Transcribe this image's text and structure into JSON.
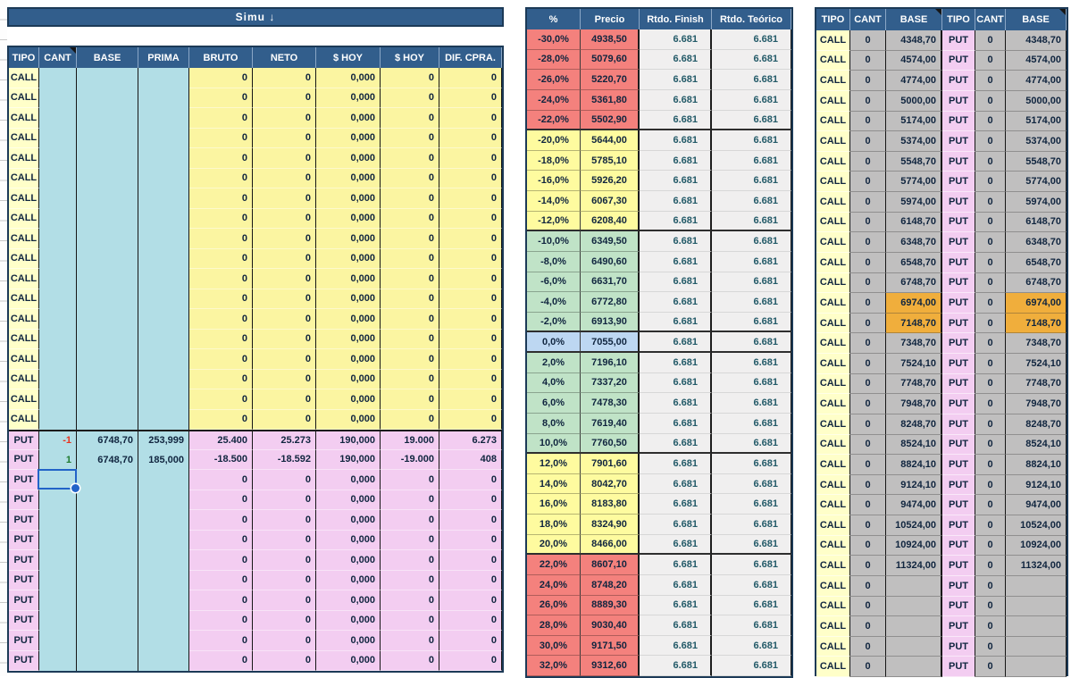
{
  "left_table": {
    "banner_label": "Simu ↓",
    "headers": [
      "TIPO",
      "CANT",
      "BASE",
      "PRIMA",
      "BRUTO",
      "NETO",
      "$ HOY",
      "$ HOY",
      "DIF. CPRA."
    ],
    "comment_marker_header_index": 1,
    "call_row_count": 18,
    "call_row_default": {
      "tipo": "CALL",
      "cant": "",
      "base": "",
      "prima": "",
      "bruto": "0",
      "neto": "0",
      "hoy1": "0,000",
      "hoy2": "0",
      "dif": "0"
    },
    "put_rows": [
      {
        "tipo": "PUT",
        "cant": "-1",
        "cant_class": "neg",
        "base": "6748,70",
        "prima": "253,999",
        "bruto": "25.400",
        "neto": "25.273",
        "hoy1": "190,000",
        "hoy2": "19.000",
        "dif": "6.273"
      },
      {
        "tipo": "PUT",
        "cant": "1",
        "cant_class": "pos",
        "base": "6748,70",
        "prima": "185,000",
        "bruto": "-18.500",
        "neto": "-18.592",
        "hoy1": "190,000",
        "hoy2": "-19.000",
        "dif": "408"
      },
      {
        "tipo": "PUT",
        "cant": "",
        "cant_class": "",
        "base": "",
        "prima": "",
        "bruto": "0",
        "neto": "0",
        "hoy1": "0,000",
        "hoy2": "0",
        "dif": "0",
        "selected": true
      },
      {
        "tipo": "PUT",
        "cant": "",
        "cant_class": "",
        "base": "",
        "prima": "",
        "bruto": "0",
        "neto": "0",
        "hoy1": "0,000",
        "hoy2": "0",
        "dif": "0"
      },
      {
        "tipo": "PUT",
        "cant": "",
        "cant_class": "",
        "base": "",
        "prima": "",
        "bruto": "0",
        "neto": "0",
        "hoy1": "0,000",
        "hoy2": "0",
        "dif": "0"
      },
      {
        "tipo": "PUT",
        "cant": "",
        "cant_class": "",
        "base": "",
        "prima": "",
        "bruto": "0",
        "neto": "0",
        "hoy1": "0,000",
        "hoy2": "0",
        "dif": "0"
      },
      {
        "tipo": "PUT",
        "cant": "",
        "cant_class": "",
        "base": "",
        "prima": "",
        "bruto": "0",
        "neto": "0",
        "hoy1": "0,000",
        "hoy2": "0",
        "dif": "0"
      },
      {
        "tipo": "PUT",
        "cant": "",
        "cant_class": "",
        "base": "",
        "prima": "",
        "bruto": "0",
        "neto": "0",
        "hoy1": "0,000",
        "hoy2": "0",
        "dif": "0"
      },
      {
        "tipo": "PUT",
        "cant": "",
        "cant_class": "",
        "base": "",
        "prima": "",
        "bruto": "0",
        "neto": "0",
        "hoy1": "0,000",
        "hoy2": "0",
        "dif": "0"
      },
      {
        "tipo": "PUT",
        "cant": "",
        "cant_class": "",
        "base": "",
        "prima": "",
        "bruto": "0",
        "neto": "0",
        "hoy1": "0,000",
        "hoy2": "0",
        "dif": "0"
      },
      {
        "tipo": "PUT",
        "cant": "",
        "cant_class": "",
        "base": "",
        "prima": "",
        "bruto": "0",
        "neto": "0",
        "hoy1": "0,000",
        "hoy2": "0",
        "dif": "0"
      },
      {
        "tipo": "PUT",
        "cant": "",
        "cant_class": "",
        "base": "",
        "prima": "",
        "bruto": "0",
        "neto": "0",
        "hoy1": "0,000",
        "hoy2": "0",
        "dif": "0"
      }
    ]
  },
  "middle_table": {
    "headers": [
      "%",
      "Precio",
      "Rtdo. Finish",
      "Rtdo. Teórico"
    ],
    "rows": [
      {
        "pct": "-30,0%",
        "precio": "4938,50",
        "finish": "6.681",
        "teorico": "6.681",
        "band": "salmon"
      },
      {
        "pct": "-28,0%",
        "precio": "5079,60",
        "finish": "6.681",
        "teorico": "6.681",
        "band": "salmon"
      },
      {
        "pct": "-26,0%",
        "precio": "5220,70",
        "finish": "6.681",
        "teorico": "6.681",
        "band": "salmon"
      },
      {
        "pct": "-24,0%",
        "precio": "5361,80",
        "finish": "6.681",
        "teorico": "6.681",
        "band": "salmon"
      },
      {
        "pct": "-22,0%",
        "precio": "5502,90",
        "finish": "6.681",
        "teorico": "6.681",
        "band": "salmon",
        "group_end": true
      },
      {
        "pct": "-20,0%",
        "precio": "5644,00",
        "finish": "6.681",
        "teorico": "6.681",
        "band": "yellow"
      },
      {
        "pct": "-18,0%",
        "precio": "5785,10",
        "finish": "6.681",
        "teorico": "6.681",
        "band": "yellow"
      },
      {
        "pct": "-16,0%",
        "precio": "5926,20",
        "finish": "6.681",
        "teorico": "6.681",
        "band": "yellow"
      },
      {
        "pct": "-14,0%",
        "precio": "6067,30",
        "finish": "6.681",
        "teorico": "6.681",
        "band": "yellow"
      },
      {
        "pct": "-12,0%",
        "precio": "6208,40",
        "finish": "6.681",
        "teorico": "6.681",
        "band": "yellow",
        "group_end": true
      },
      {
        "pct": "-10,0%",
        "precio": "6349,50",
        "finish": "6.681",
        "teorico": "6.681",
        "band": "green"
      },
      {
        "pct": "-8,0%",
        "precio": "6490,60",
        "finish": "6.681",
        "teorico": "6.681",
        "band": "green"
      },
      {
        "pct": "-6,0%",
        "precio": "6631,70",
        "finish": "6.681",
        "teorico": "6.681",
        "band": "green"
      },
      {
        "pct": "-4,0%",
        "precio": "6772,80",
        "finish": "6.681",
        "teorico": "6.681",
        "band": "green"
      },
      {
        "pct": "-2,0%",
        "precio": "6913,90",
        "finish": "6.681",
        "teorico": "6.681",
        "band": "green",
        "group_end": true
      },
      {
        "pct": "0,0%",
        "precio": "7055,00",
        "finish": "6.681",
        "teorico": "6.681",
        "band": "blue",
        "group_end": true
      },
      {
        "pct": "2,0%",
        "precio": "7196,10",
        "finish": "6.681",
        "teorico": "6.681",
        "band": "green"
      },
      {
        "pct": "4,0%",
        "precio": "7337,20",
        "finish": "6.681",
        "teorico": "6.681",
        "band": "green"
      },
      {
        "pct": "6,0%",
        "precio": "7478,30",
        "finish": "6.681",
        "teorico": "6.681",
        "band": "green"
      },
      {
        "pct": "8,0%",
        "precio": "7619,40",
        "finish": "6.681",
        "teorico": "6.681",
        "band": "green"
      },
      {
        "pct": "10,0%",
        "precio": "7760,50",
        "finish": "6.681",
        "teorico": "6.681",
        "band": "green",
        "group_end": true
      },
      {
        "pct": "12,0%",
        "precio": "7901,60",
        "finish": "6.681",
        "teorico": "6.681",
        "band": "yellow"
      },
      {
        "pct": "14,0%",
        "precio": "8042,70",
        "finish": "6.681",
        "teorico": "6.681",
        "band": "yellow"
      },
      {
        "pct": "16,0%",
        "precio": "8183,80",
        "finish": "6.681",
        "teorico": "6.681",
        "band": "yellow"
      },
      {
        "pct": "18,0%",
        "precio": "8324,90",
        "finish": "6.681",
        "teorico": "6.681",
        "band": "yellow"
      },
      {
        "pct": "20,0%",
        "precio": "8466,00",
        "finish": "6.681",
        "teorico": "6.681",
        "band": "yellow",
        "group_end": true
      },
      {
        "pct": "22,0%",
        "precio": "8607,10",
        "finish": "6.681",
        "teorico": "6.681",
        "band": "salmon"
      },
      {
        "pct": "24,0%",
        "precio": "8748,20",
        "finish": "6.681",
        "teorico": "6.681",
        "band": "salmon"
      },
      {
        "pct": "26,0%",
        "precio": "8889,30",
        "finish": "6.681",
        "teorico": "6.681",
        "band": "salmon"
      },
      {
        "pct": "28,0%",
        "precio": "9030,40",
        "finish": "6.681",
        "teorico": "6.681",
        "band": "salmon"
      },
      {
        "pct": "30,0%",
        "precio": "9171,50",
        "finish": "6.681",
        "teorico": "6.681",
        "band": "salmon"
      },
      {
        "pct": "32,0%",
        "precio": "9312,60",
        "finish": "6.681",
        "teorico": "6.681",
        "band": "salmon"
      }
    ]
  },
  "right_table": {
    "headers": [
      "TIPO",
      "CANT",
      "BASE",
      "TIPO",
      "CANT",
      "BASE"
    ],
    "comment_marker_header_indexes": [
      2,
      5
    ],
    "rows": [
      {
        "call": "CALL",
        "call_cant": "0",
        "base": "4348,70",
        "put": "PUT",
        "put_cant": "0",
        "highlight": false
      },
      {
        "call": "CALL",
        "call_cant": "0",
        "base": "4574,00",
        "put": "PUT",
        "put_cant": "0",
        "highlight": false
      },
      {
        "call": "CALL",
        "call_cant": "0",
        "base": "4774,00",
        "put": "PUT",
        "put_cant": "0",
        "highlight": false
      },
      {
        "call": "CALL",
        "call_cant": "0",
        "base": "5000,00",
        "put": "PUT",
        "put_cant": "0",
        "highlight": false
      },
      {
        "call": "CALL",
        "call_cant": "0",
        "base": "5174,00",
        "put": "PUT",
        "put_cant": "0",
        "highlight": false
      },
      {
        "call": "CALL",
        "call_cant": "0",
        "base": "5374,00",
        "put": "PUT",
        "put_cant": "0",
        "highlight": false
      },
      {
        "call": "CALL",
        "call_cant": "0",
        "base": "5548,70",
        "put": "PUT",
        "put_cant": "0",
        "highlight": false
      },
      {
        "call": "CALL",
        "call_cant": "0",
        "base": "5774,00",
        "put": "PUT",
        "put_cant": "0",
        "highlight": false
      },
      {
        "call": "CALL",
        "call_cant": "0",
        "base": "5974,00",
        "put": "PUT",
        "put_cant": "0",
        "highlight": false
      },
      {
        "call": "CALL",
        "call_cant": "0",
        "base": "6148,70",
        "put": "PUT",
        "put_cant": "0",
        "highlight": false
      },
      {
        "call": "CALL",
        "call_cant": "0",
        "base": "6348,70",
        "put": "PUT",
        "put_cant": "0",
        "highlight": false
      },
      {
        "call": "CALL",
        "call_cant": "0",
        "base": "6548,70",
        "put": "PUT",
        "put_cant": "0",
        "highlight": false
      },
      {
        "call": "CALL",
        "call_cant": "0",
        "base": "6748,70",
        "put": "PUT",
        "put_cant": "0",
        "highlight": false
      },
      {
        "call": "CALL",
        "call_cant": "0",
        "base": "6974,00",
        "put": "PUT",
        "put_cant": "0",
        "highlight": true
      },
      {
        "call": "CALL",
        "call_cant": "0",
        "base": "7148,70",
        "put": "PUT",
        "put_cant": "0",
        "highlight": true
      },
      {
        "call": "CALL",
        "call_cant": "0",
        "base": "7348,70",
        "put": "PUT",
        "put_cant": "0",
        "highlight": false
      },
      {
        "call": "CALL",
        "call_cant": "0",
        "base": "7524,10",
        "put": "PUT",
        "put_cant": "0",
        "highlight": false
      },
      {
        "call": "CALL",
        "call_cant": "0",
        "base": "7748,70",
        "put": "PUT",
        "put_cant": "0",
        "highlight": false
      },
      {
        "call": "CALL",
        "call_cant": "0",
        "base": "7948,70",
        "put": "PUT",
        "put_cant": "0",
        "highlight": false
      },
      {
        "call": "CALL",
        "call_cant": "0",
        "base": "8248,70",
        "put": "PUT",
        "put_cant": "0",
        "highlight": false
      },
      {
        "call": "CALL",
        "call_cant": "0",
        "base": "8524,10",
        "put": "PUT",
        "put_cant": "0",
        "highlight": false
      },
      {
        "call": "CALL",
        "call_cant": "0",
        "base": "8824,10",
        "put": "PUT",
        "put_cant": "0",
        "highlight": false
      },
      {
        "call": "CALL",
        "call_cant": "0",
        "base": "9124,10",
        "put": "PUT",
        "put_cant": "0",
        "highlight": false
      },
      {
        "call": "CALL",
        "call_cant": "0",
        "base": "9474,00",
        "put": "PUT",
        "put_cant": "0",
        "highlight": false
      },
      {
        "call": "CALL",
        "call_cant": "0",
        "base": "10524,00",
        "put": "PUT",
        "put_cant": "0",
        "highlight": false
      },
      {
        "call": "CALL",
        "call_cant": "0",
        "base": "10924,00",
        "put": "PUT",
        "put_cant": "0",
        "highlight": false
      },
      {
        "call": "CALL",
        "call_cant": "0",
        "base": "11324,00",
        "put": "PUT",
        "put_cant": "0",
        "highlight": false
      },
      {
        "call": "CALL",
        "call_cant": "0",
        "base": "",
        "put": "PUT",
        "put_cant": "0",
        "highlight": false
      },
      {
        "call": "CALL",
        "call_cant": "0",
        "base": "",
        "put": "PUT",
        "put_cant": "0",
        "highlight": false
      },
      {
        "call": "CALL",
        "call_cant": "0",
        "base": "",
        "put": "PUT",
        "put_cant": "0",
        "highlight": false
      },
      {
        "call": "CALL",
        "call_cant": "0",
        "base": "",
        "put": "PUT",
        "put_cant": "0",
        "highlight": false
      },
      {
        "call": "CALL",
        "call_cant": "0",
        "base": "",
        "put": "PUT",
        "put_cant": "0",
        "highlight": false
      }
    ]
  },
  "selection": {
    "section": "put",
    "row_index": 2,
    "column": "CANT"
  },
  "colors": {
    "header_blue": "#325E8C",
    "table_border": "#1C3A57",
    "call_tipo_yellow": "#FFFFC9",
    "call_data_yellow": "#FBF5A1",
    "input_cyan": "#B2DEE6",
    "put_pink": "#F3CDF1",
    "band_salmon": "#F4817D",
    "band_yellow": "#FEFB9F",
    "band_green": "#C0E3C7",
    "band_blue": "#BDD7F2",
    "rtdo_gray": "#F0EFEF",
    "rtdo_text": "#235A68",
    "strike_gray": "#C0BFBF",
    "highlight_orange": "#F0AE3C",
    "negative_red": "#E8321E",
    "positive_green": "#1E7A2E",
    "selection_blue": "#2263C8",
    "cell_text": "#10253F"
  }
}
